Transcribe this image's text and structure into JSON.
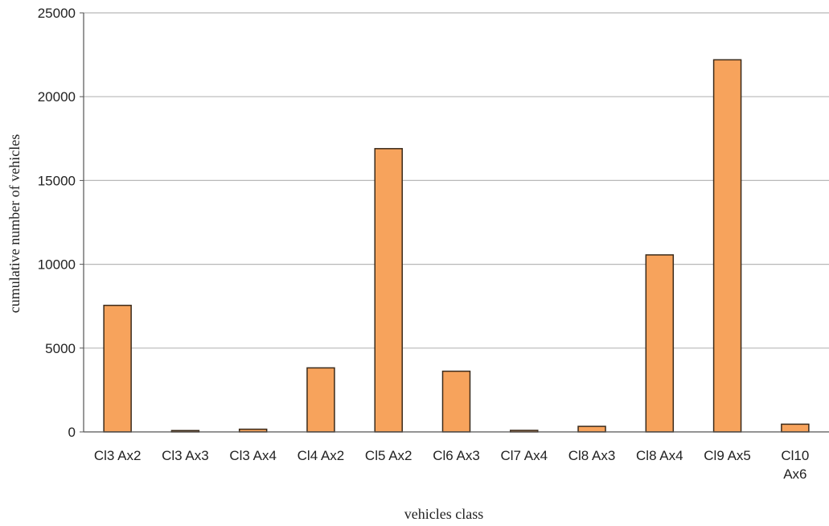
{
  "chart_data": {
    "type": "bar",
    "categories": [
      "Cl3  Ax2",
      "Cl3  Ax3",
      "Cl3  Ax4",
      "Cl4  Ax2",
      "Cl5  Ax2",
      "Cl6  Ax3",
      "Cl7  Ax4",
      "Cl8  Ax3",
      "Cl8  Ax4",
      "Cl9  Ax5",
      "Cl10 Ax6"
    ],
    "values": [
      7550,
      80,
      160,
      3820,
      16900,
      3620,
      90,
      330,
      10560,
      22200,
      460
    ],
    "xlabel": "vehicles class",
    "ylabel": "cumulative number of vehicles",
    "ylim": [
      0,
      25000
    ],
    "yticks": [
      0,
      5000,
      10000,
      15000,
      20000,
      25000
    ],
    "grid": true,
    "legend": "none",
    "colors": {
      "bar_fill": "#F7A35C",
      "bar_stroke": "#3A2A1A",
      "grid": "#b8b8b8",
      "axis": "#555555"
    }
  }
}
